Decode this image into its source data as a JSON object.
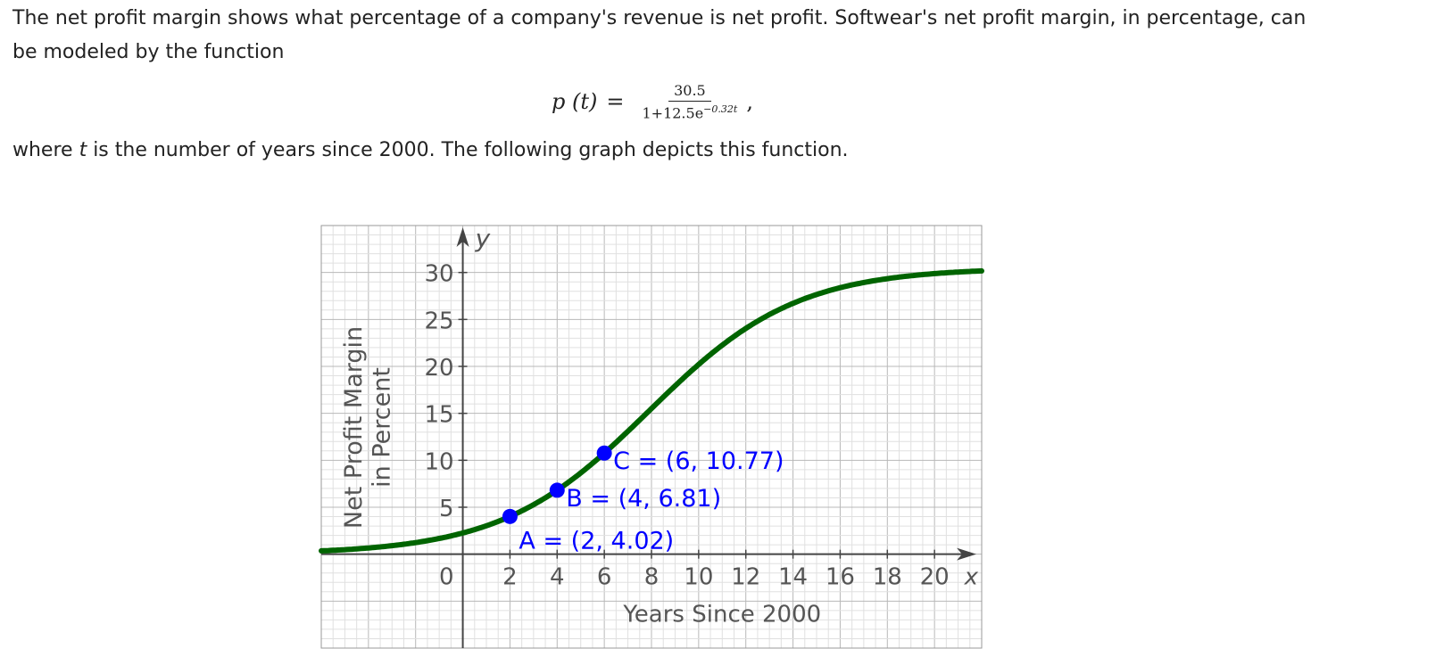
{
  "intro_text": "The net profit margin shows what percentage of a company's revenue is net profit. Softwear's net profit margin, in percentage, can be modeled by the function",
  "formula": {
    "lhs": "p (t)",
    "equals": "=",
    "numerator": "30.5",
    "denominator_base": "1+12.5e",
    "denominator_exponent": "−0.32t",
    "trailing": ","
  },
  "where_text": {
    "before": "where ",
    "variable": "t",
    "after": " is the number of years since 2000. The following graph depicts this function."
  },
  "chart_data": {
    "type": "line",
    "title": "",
    "xlabel": "Years Since 2000",
    "ylabel_line1": "Net Profit Margin",
    "ylabel_line2": "in Percent",
    "x_axis_name": "x",
    "y_axis_name": "y",
    "xlim": [
      -6,
      22
    ],
    "ylim": [
      -10,
      35
    ],
    "xticks": [
      2,
      4,
      6,
      8,
      10,
      12,
      14,
      16,
      18,
      20
    ],
    "yticks": [
      5,
      10,
      15,
      20,
      25,
      30
    ],
    "origin_label": "0",
    "grid": true,
    "line_color": "#006400",
    "point_color": "#0000ff",
    "label_color": "#0000ff",
    "function": {
      "a": 30.5,
      "b": 12.5,
      "k": 0.32
    },
    "points": [
      {
        "name": "A",
        "x": 2,
        "y": 4.02,
        "label": "A = (2, 4.02)"
      },
      {
        "name": "B",
        "x": 4,
        "y": 6.81,
        "label": "B = (4, 6.81)"
      },
      {
        "name": "C",
        "x": 6,
        "y": 10.77,
        "label": "C = (6, 10.77)"
      }
    ]
  }
}
